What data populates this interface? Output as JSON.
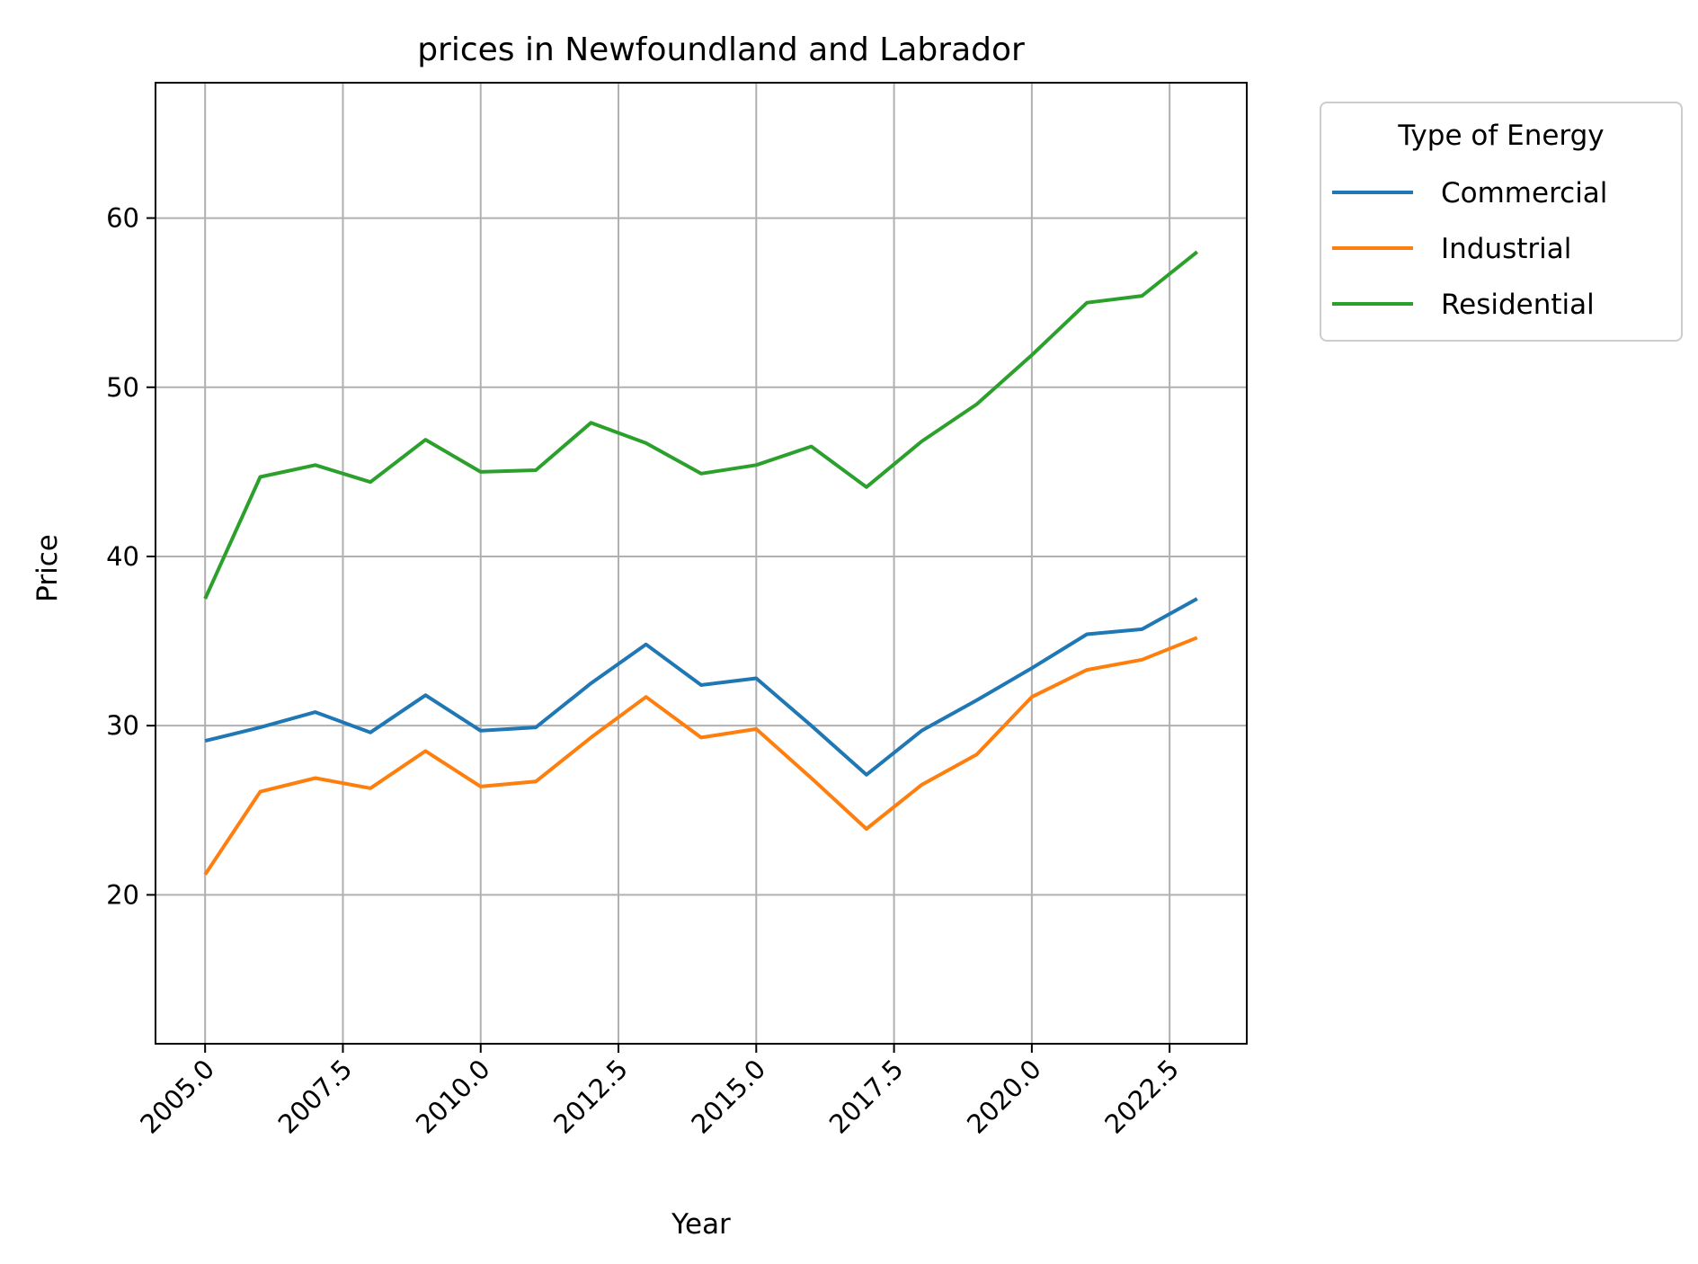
{
  "chart_data": {
    "type": "line",
    "title": "prices in Newfoundland and Labrador",
    "xlabel": "Year",
    "ylabel": "Price",
    "xlim": [
      2004.1,
      2023.9
    ],
    "ylim": [
      11.2,
      68.0
    ],
    "xticks": [
      "2005.0",
      "2007.5",
      "2010.0",
      "2012.5",
      "2015.0",
      "2017.5",
      "2020.0",
      "2022.5"
    ],
    "xtick_values": [
      2005.0,
      2007.5,
      2010.0,
      2012.5,
      2015.0,
      2017.5,
      2020.0,
      2022.5
    ],
    "yticks": [
      "20",
      "30",
      "40",
      "50",
      "60"
    ],
    "ytick_values": [
      20,
      30,
      40,
      50,
      60
    ],
    "grid": true,
    "legend_title": "Type of Energy",
    "legend_position": "outside-top-right",
    "x": [
      2005,
      2006,
      2007,
      2008,
      2009,
      2010,
      2011,
      2012,
      2013,
      2014,
      2015,
      2016,
      2017,
      2018,
      2019,
      2020,
      2021,
      2022,
      2023
    ],
    "series": [
      {
        "name": "Commercial",
        "color": "#1f77b4",
        "values": [
          29.1,
          29.9,
          30.8,
          29.6,
          31.8,
          29.7,
          29.9,
          32.5,
          34.8,
          32.4,
          32.8,
          30.0,
          27.1,
          29.7,
          31.5,
          33.4,
          35.4,
          35.7,
          37.5
        ]
      },
      {
        "name": "Industrial",
        "color": "#ff7f0e",
        "values": [
          21.2,
          26.1,
          26.9,
          26.3,
          28.5,
          26.4,
          26.7,
          29.3,
          31.7,
          29.3,
          29.8,
          26.9,
          23.9,
          26.5,
          28.3,
          31.7,
          33.3,
          33.9,
          35.2
        ]
      },
      {
        "name": "Residential",
        "color": "#2ca02c",
        "values": [
          37.5,
          44.7,
          45.4,
          44.4,
          46.9,
          45.0,
          45.1,
          47.9,
          46.7,
          44.9,
          45.4,
          46.5,
          44.1,
          46.8,
          49.0,
          51.9,
          55.0,
          55.4,
          58.0
        ]
      }
    ]
  }
}
